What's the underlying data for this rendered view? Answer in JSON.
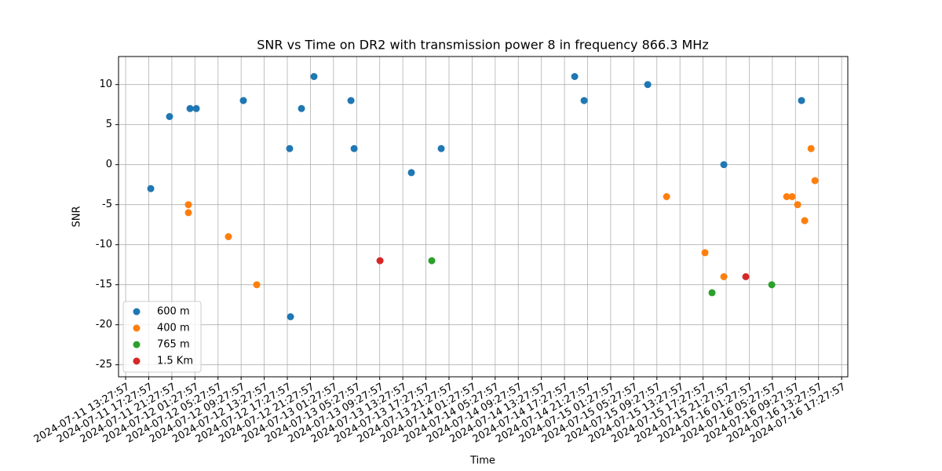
{
  "chart_data": {
    "type": "scatter",
    "title": "SNR vs Time on DR2 with transmission power 8 in frequency 866.3 MHz",
    "x_label": "Time",
    "y_label": "SNR",
    "xlim": [
      "2024-07-11 12:14:00",
      "2024-07-16 18:32:00"
    ],
    "xticks": [
      "2024-07-11 13:27:57",
      "2024-07-11 17:27:57",
      "2024-07-11 21:27:57",
      "2024-07-12 01:27:57",
      "2024-07-12 05:27:57",
      "2024-07-12 09:27:57",
      "2024-07-12 13:27:57",
      "2024-07-12 17:27:57",
      "2024-07-12 21:27:57",
      "2024-07-13 01:27:57",
      "2024-07-13 05:27:57",
      "2024-07-13 09:27:57",
      "2024-07-13 13:27:57",
      "2024-07-13 17:27:57",
      "2024-07-13 21:27:57",
      "2024-07-14 01:27:57",
      "2024-07-14 05:27:57",
      "2024-07-14 09:27:57",
      "2024-07-14 13:27:57",
      "2024-07-14 17:27:57",
      "2024-07-14 21:27:57",
      "2024-07-15 01:27:57",
      "2024-07-15 05:27:57",
      "2024-07-15 09:27:57",
      "2024-07-15 13:27:57",
      "2024-07-15 17:27:57",
      "2024-07-15 21:27:57",
      "2024-07-16 01:27:57",
      "2024-07-16 05:27:57",
      "2024-07-16 09:27:57",
      "2024-07-16 13:27:57",
      "2024-07-16 17:27:57"
    ],
    "ylim": [
      -26.5,
      13.5
    ],
    "yticks": [
      -25,
      -20,
      -15,
      -10,
      -5,
      0,
      5,
      10
    ],
    "grid": true,
    "legend": "lower left",
    "series": [
      {
        "name": "600 m",
        "color": "#1f77b4",
        "x": [
          "2024-07-11 17:49:00",
          "2024-07-11 21:04:00",
          "2024-07-12 00:37:00",
          "2024-07-12 01:42:00",
          "2024-07-12 09:51:00",
          "2024-07-12 17:52:00",
          "2024-07-12 18:01:00",
          "2024-07-12 19:55:00",
          "2024-07-12 22:05:00",
          "2024-07-13 04:29:00",
          "2024-07-13 05:02:00",
          "2024-07-13 14:57:00",
          "2024-07-13 20:07:00",
          "2024-07-14 19:14:00",
          "2024-07-14 20:52:00",
          "2024-07-15 07:53:00",
          "2024-07-15 21:04:00",
          "2024-07-16 10:31:00"
        ],
        "values": [
          -3,
          6,
          7,
          7,
          8,
          2,
          -19,
          7,
          11,
          8,
          2,
          -1,
          2,
          11,
          8,
          10,
          0,
          8
        ]
      },
      {
        "name": "400 m",
        "color": "#ff7f0e",
        "x": [
          "2024-07-12 00:20:00",
          "2024-07-12 00:20:00",
          "2024-07-12 07:16:00",
          "2024-07-12 12:10:00",
          "2024-07-15 11:09:00",
          "2024-07-15 17:48:00",
          "2024-07-15 21:04:00",
          "2024-07-16 07:57:00",
          "2024-07-16 08:54:00",
          "2024-07-16 09:51:00",
          "2024-07-16 11:04:00",
          "2024-07-16 12:10:00",
          "2024-07-16 12:51:00"
        ],
        "values": [
          -5,
          -6,
          -9,
          -15,
          -4,
          -11,
          -14,
          -4,
          -4,
          -5,
          -7,
          2,
          -2
        ]
      },
      {
        "name": "765 m",
        "color": "#2ca02c",
        "x": [
          "2024-07-13 18:29:00",
          "2024-07-15 19:01:00",
          "2024-07-16 05:22:00"
        ],
        "values": [
          -12,
          -16,
          -15
        ]
      },
      {
        "name": "1.5 Km",
        "color": "#d62728",
        "x": [
          "2024-07-13 09:31:00",
          "2024-07-16 00:52:00"
        ],
        "values": [
          -12,
          -14
        ]
      }
    ]
  }
}
